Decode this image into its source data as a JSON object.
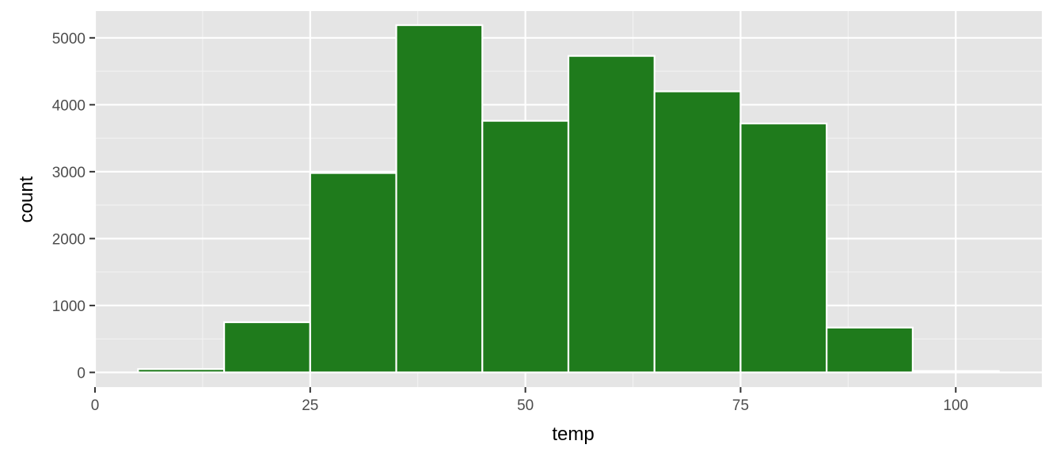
{
  "chart_data": {
    "type": "bar",
    "subtype": "histogram",
    "xlabel": "temp",
    "ylabel": "count",
    "bin_width": 10,
    "bins": [
      {
        "x0": 5,
        "x1": 15,
        "count": 50
      },
      {
        "x0": 15,
        "x1": 25,
        "count": 750
      },
      {
        "x0": 25,
        "x1": 35,
        "count": 2980
      },
      {
        "x0": 35,
        "x1": 45,
        "count": 5190
      },
      {
        "x0": 45,
        "x1": 55,
        "count": 3760
      },
      {
        "x0": 55,
        "x1": 65,
        "count": 4730
      },
      {
        "x0": 65,
        "x1": 75,
        "count": 4200
      },
      {
        "x0": 75,
        "x1": 85,
        "count": 3720
      },
      {
        "x0": 85,
        "x1": 95,
        "count": 670
      },
      {
        "x0": 95,
        "x1": 105,
        "count": 20
      }
    ],
    "xlim": [
      0,
      110
    ],
    "ylim": [
      -220,
      5400
    ],
    "x_ticks": [
      0,
      25,
      50,
      75,
      100
    ],
    "x_tick_labels": [
      "0",
      "25",
      "50",
      "75",
      "100"
    ],
    "y_ticks": [
      0,
      1000,
      2000,
      3000,
      4000,
      5000
    ],
    "y_tick_labels": [
      "0",
      "1000",
      "2000",
      "3000",
      "4000",
      "5000"
    ],
    "grid": true,
    "legend": "none",
    "colors": {
      "bar_fill": "#1f7b1c",
      "bar_outline": "#ffffff",
      "panel_background": "#e5e5e5",
      "grid_major": "#ffffff",
      "grid_minor": "#f2f2f2",
      "tick_text": "#4d4d4d",
      "axis_title": "#000000"
    }
  }
}
